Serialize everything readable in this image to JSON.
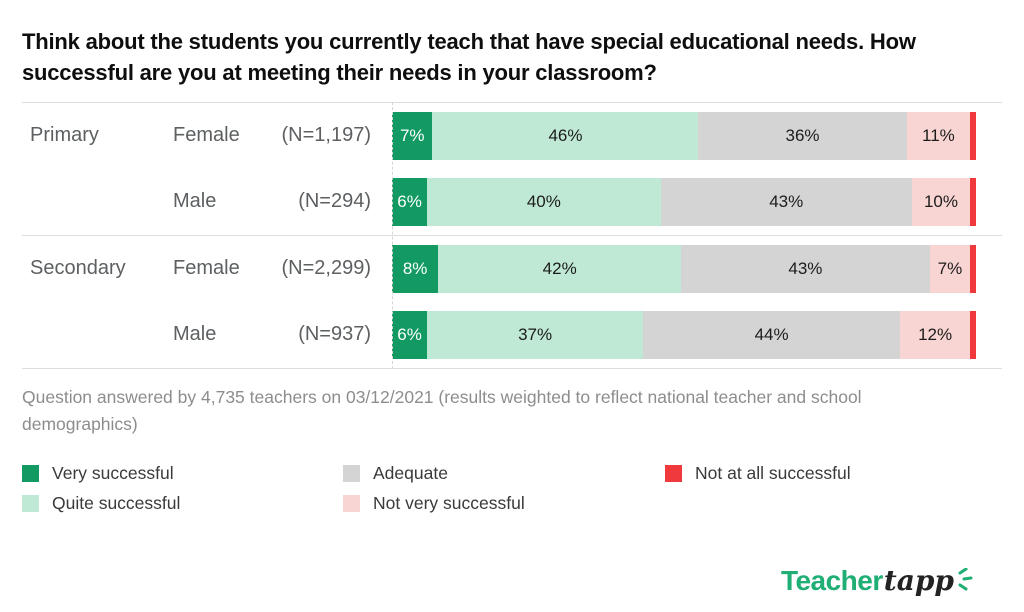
{
  "title": "Think about the students you currently teach that have special educational needs. How successful are you at meeting their needs in your classroom?",
  "footnote": "Question answered by 4,735 teachers on 03/12/2021 (results weighted to reflect national teacher and school demographics)",
  "colors": {
    "very_successful": "#129a62",
    "quite_successful": "#bfe9d5",
    "adequate": "#d4d4d4",
    "not_very_successful": "#f8d5d2",
    "not_at_all_successful": "#f0393d",
    "brand_green": "#1fae74"
  },
  "chart_data": {
    "type": "bar",
    "stacked": true,
    "orientation": "horizontal",
    "unit": "%",
    "series_names": [
      "Very successful",
      "Quite successful",
      "Adequate",
      "Not very successful",
      "Not at all successful"
    ],
    "segment_colors": [
      "#129a62",
      "#bfe9d5",
      "#d4d4d4",
      "#f8d5d2",
      "#f0393d"
    ],
    "rows": [
      {
        "group": "Primary",
        "gender": "Female",
        "n_label": "(N=1,197)",
        "values": [
          7,
          46,
          36,
          11,
          1
        ],
        "labels": [
          "7%",
          "46%",
          "36%",
          "11%",
          ""
        ]
      },
      {
        "group": "",
        "gender": "Male",
        "n_label": "(N=294)",
        "values": [
          6,
          40,
          43,
          10,
          1
        ],
        "labels": [
          "6%",
          "40%",
          "43%",
          "10%",
          ""
        ]
      },
      {
        "group": "Secondary",
        "gender": "Female",
        "n_label": "(N=2,299)",
        "values": [
          8,
          42,
          43,
          7,
          1
        ],
        "labels": [
          "8%",
          "42%",
          "43%",
          "7%",
          ""
        ]
      },
      {
        "group": "",
        "gender": "Male",
        "n_label": "(N=937)",
        "values": [
          6,
          37,
          44,
          12,
          1
        ],
        "labels": [
          "6%",
          "37%",
          "44%",
          "12%",
          ""
        ]
      }
    ]
  },
  "legend": {
    "items": [
      {
        "label": "Very successful",
        "color": "#129a62"
      },
      {
        "label": "Quite successful",
        "color": "#bfe9d5"
      },
      {
        "label": "Adequate",
        "color": "#d4d4d4"
      },
      {
        "label": "Not very successful",
        "color": "#f8d5d2"
      },
      {
        "label": "Not at all successful",
        "color": "#f0393d"
      }
    ]
  },
  "logo": {
    "text_primary": "Teacher",
    "text_secondary": "tapp"
  }
}
